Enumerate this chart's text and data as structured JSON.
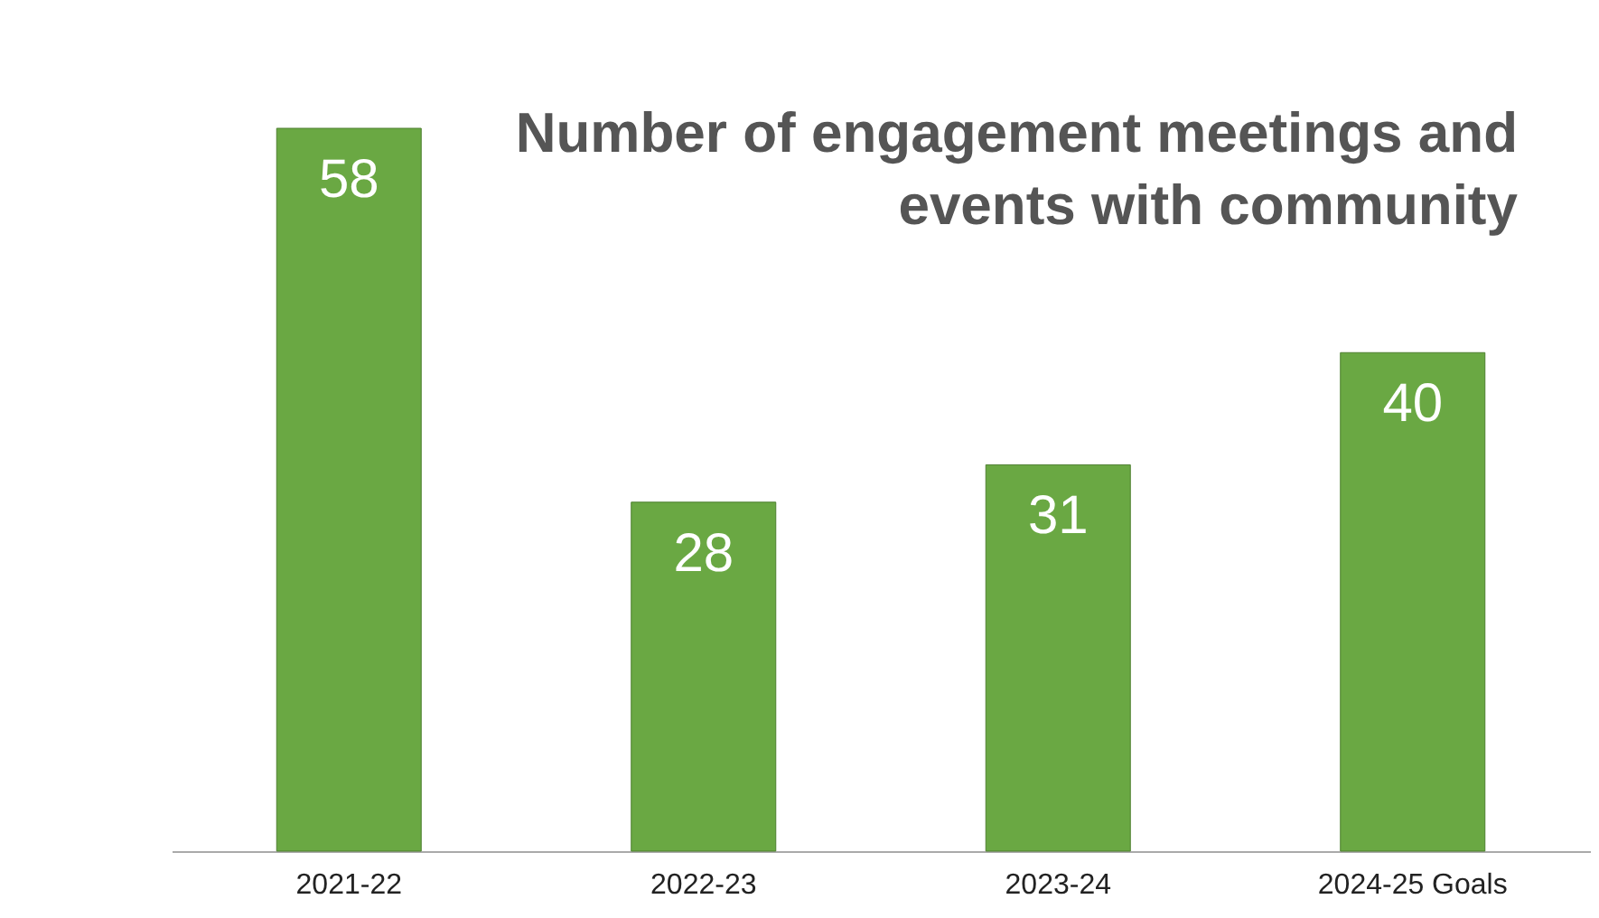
{
  "chart_data": {
    "type": "bar",
    "title": "Number of engagement meetings and events with community",
    "categories": [
      "2021-22",
      "2022-23",
      "2023-24",
      "2024-25 Goals"
    ],
    "values": [
      58,
      28,
      31,
      40
    ],
    "color": "#6aa843",
    "data_labels": true,
    "grid": false,
    "tick_labels": "x"
  }
}
